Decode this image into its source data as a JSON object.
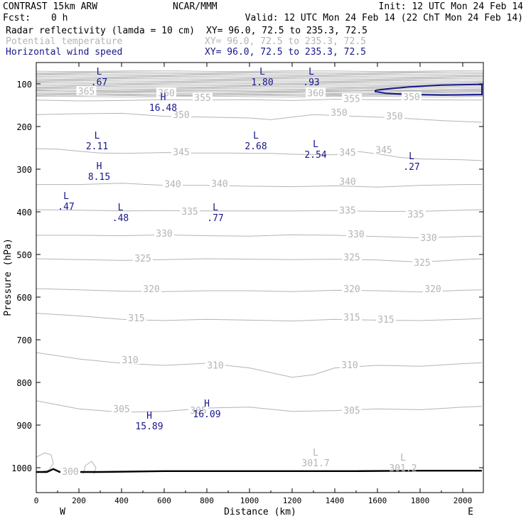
{
  "header": {
    "title": "CONTRAST 15km ARW",
    "center": "NCAR/MMM",
    "init": "Init: 12 UTC Mon 24 Feb 14",
    "fcst_label": "Fcst:",
    "fcst_value": "0 h",
    "valid": "Valid: 12 UTC Mon 24 Feb 14 (22 ChT Mon 24 Feb 14)"
  },
  "fields": [
    {
      "name": "Radar reflectivity (lamda = 10 cm)",
      "xy": "XY=  96.0, 72.5 to 235.3, 72.5",
      "color": "#000000"
    },
    {
      "name": "Potential temperature",
      "xy": "XY=  96.0, 72.5 to 235.3, 72.5",
      "color": "#b4b4b4"
    },
    {
      "name": "Horizontal wind speed",
      "xy": "XY=  96.0, 72.5 to 235.3, 72.5",
      "color": "#16168c"
    }
  ],
  "chart_data": {
    "type": "line",
    "title": "CONTRAST 15km ARW",
    "xlabel": "Distance (km)",
    "ylabel": "Pressure (hPa)",
    "xlim": [
      0,
      2090
    ],
    "ylim": [
      1050,
      70
    ],
    "x_ticks": [
      0,
      200,
      400,
      600,
      800,
      1000,
      1200,
      1400,
      1600,
      1800,
      2000
    ],
    "y_ticks": [
      100,
      200,
      300,
      400,
      500,
      600,
      700,
      800,
      900,
      1000
    ],
    "x_end_labels": {
      "left": "W",
      "right": "E"
    },
    "theta_contours": [
      {
        "value": "365",
        "points": [
          [
            0,
            115
          ],
          [
            150,
            117
          ],
          [
            300,
            116
          ],
          [
            450,
            118
          ],
          [
            600,
            117
          ],
          [
            800,
            116
          ],
          [
            1000,
            117
          ],
          [
            1200,
            119
          ],
          [
            1400,
            117
          ],
          [
            1600,
            115
          ],
          [
            1800,
            116
          ],
          [
            2090,
            117
          ]
        ]
      },
      {
        "value": "360",
        "points": [
          [
            0,
            125
          ],
          [
            200,
            127
          ],
          [
            400,
            126
          ],
          [
            600,
            125
          ],
          [
            800,
            127
          ],
          [
            1000,
            126
          ],
          [
            1200,
            125
          ],
          [
            1400,
            124
          ],
          [
            1600,
            126
          ],
          [
            2090,
            125
          ]
        ]
      },
      {
        "value": "355",
        "points": [
          [
            0,
            138
          ],
          [
            200,
            140
          ],
          [
            400,
            139
          ],
          [
            600,
            137
          ],
          [
            800,
            138
          ],
          [
            1000,
            137
          ],
          [
            1200,
            139
          ],
          [
            1400,
            136
          ],
          [
            1600,
            137
          ],
          [
            2090,
            138
          ]
        ]
      },
      {
        "value": "350",
        "points": [
          [
            0,
            172
          ],
          [
            200,
            170
          ],
          [
            400,
            169
          ],
          [
            600,
            176
          ],
          [
            800,
            178
          ],
          [
            1000,
            180
          ],
          [
            1100,
            184
          ],
          [
            1200,
            178
          ],
          [
            1300,
            172
          ],
          [
            1500,
            176
          ],
          [
            1700,
            180
          ],
          [
            1900,
            186
          ],
          [
            2090,
            190
          ]
        ]
      },
      {
        "value": "345",
        "points": [
          [
            0,
            252
          ],
          [
            100,
            253
          ],
          [
            200,
            258
          ],
          [
            300,
            262
          ],
          [
            400,
            263
          ],
          [
            500,
            262
          ],
          [
            600,
            261
          ],
          [
            700,
            262
          ],
          [
            800,
            262
          ],
          [
            900,
            262
          ],
          [
            1000,
            263
          ],
          [
            1100,
            263
          ],
          [
            1200,
            265
          ],
          [
            1300,
            266
          ],
          [
            1400,
            266
          ],
          [
            1500,
            258
          ],
          [
            1600,
            264
          ],
          [
            1700,
            272
          ],
          [
            1800,
            276
          ],
          [
            2000,
            278
          ],
          [
            2090,
            280
          ]
        ]
      },
      {
        "value": "340",
        "points": [
          [
            0,
            336
          ],
          [
            200,
            336
          ],
          [
            400,
            333
          ],
          [
            600,
            338
          ],
          [
            800,
            338
          ],
          [
            1000,
            340
          ],
          [
            1200,
            341
          ],
          [
            1400,
            339
          ],
          [
            1600,
            342
          ],
          [
            1800,
            338
          ],
          [
            2000,
            336
          ],
          [
            2090,
            336
          ]
        ]
      },
      {
        "value": "335",
        "points": [
          [
            0,
            395
          ],
          [
            200,
            396
          ],
          [
            400,
            398
          ],
          [
            600,
            397
          ],
          [
            800,
            398
          ],
          [
            1000,
            398
          ],
          [
            1200,
            398
          ],
          [
            1400,
            397
          ],
          [
            1600,
            399
          ],
          [
            1800,
            399
          ],
          [
            2000,
            396
          ],
          [
            2090,
            395
          ]
        ]
      },
      {
        "value": "330",
        "points": [
          [
            0,
            455
          ],
          [
            200,
            455
          ],
          [
            400,
            456
          ],
          [
            600,
            454
          ],
          [
            800,
            456
          ],
          [
            1000,
            457
          ],
          [
            1200,
            454
          ],
          [
            1400,
            455
          ],
          [
            1600,
            458
          ],
          [
            1800,
            461
          ],
          [
            2000,
            458
          ],
          [
            2090,
            457
          ]
        ]
      },
      {
        "value": "325",
        "points": [
          [
            0,
            510
          ],
          [
            200,
            512
          ],
          [
            400,
            514
          ],
          [
            600,
            512
          ],
          [
            800,
            510
          ],
          [
            1000,
            511
          ],
          [
            1200,
            512
          ],
          [
            1400,
            511
          ],
          [
            1600,
            513
          ],
          [
            1800,
            518
          ],
          [
            2000,
            512
          ],
          [
            2090,
            510
          ]
        ]
      },
      {
        "value": "320",
        "points": [
          [
            0,
            580
          ],
          [
            200,
            583
          ],
          [
            400,
            586
          ],
          [
            600,
            587
          ],
          [
            800,
            585
          ],
          [
            1000,
            585
          ],
          [
            1200,
            587
          ],
          [
            1400,
            584
          ],
          [
            1600,
            585
          ],
          [
            1800,
            588
          ],
          [
            2000,
            584
          ],
          [
            2090,
            583
          ]
        ]
      },
      {
        "value": "315",
        "points": [
          [
            0,
            638
          ],
          [
            200,
            644
          ],
          [
            400,
            652
          ],
          [
            600,
            655
          ],
          [
            800,
            652
          ],
          [
            1000,
            654
          ],
          [
            1200,
            656
          ],
          [
            1400,
            652
          ],
          [
            1600,
            654
          ],
          [
            1800,
            655
          ],
          [
            2000,
            652
          ],
          [
            2090,
            650
          ]
        ]
      },
      {
        "value": "310",
        "points": [
          [
            0,
            730
          ],
          [
            200,
            745
          ],
          [
            400,
            755
          ],
          [
            600,
            760
          ],
          [
            800,
            755
          ],
          [
            1000,
            766
          ],
          [
            1200,
            788
          ],
          [
            1300,
            782
          ],
          [
            1400,
            766
          ],
          [
            1600,
            760
          ],
          [
            1800,
            762
          ],
          [
            2000,
            756
          ],
          [
            2090,
            754
          ]
        ]
      },
      {
        "value": "305",
        "points": [
          [
            0,
            843
          ],
          [
            200,
            862
          ],
          [
            400,
            870
          ],
          [
            600,
            868
          ],
          [
            800,
            860
          ],
          [
            1000,
            858
          ],
          [
            1200,
            868
          ],
          [
            1400,
            866
          ],
          [
            1600,
            862
          ],
          [
            1800,
            864
          ],
          [
            2000,
            858
          ],
          [
            2090,
            856
          ]
        ]
      }
    ],
    "theta_labels": [
      {
        "text": "365",
        "x": 235,
        "p": 117
      },
      {
        "text": "360",
        "x": 610,
        "p": 121
      },
      {
        "text": "355",
        "x": 780,
        "p": 132
      },
      {
        "text": "360",
        "x": 1310,
        "p": 121
      },
      {
        "text": "355",
        "x": 1480,
        "p": 134
      },
      {
        "text": "350",
        "x": 1760,
        "p": 130
      },
      {
        "text": "350",
        "x": 680,
        "p": 172
      },
      {
        "text": "350",
        "x": 1420,
        "p": 167
      },
      {
        "text": "350",
        "x": 1680,
        "p": 175
      },
      {
        "text": "345",
        "x": 680,
        "p": 259
      },
      {
        "text": "345",
        "x": 1460,
        "p": 260
      },
      {
        "text": "345",
        "x": 1630,
        "p": 254
      },
      {
        "text": "340",
        "x": 640,
        "p": 334
      },
      {
        "text": "340",
        "x": 860,
        "p": 333
      },
      {
        "text": "340",
        "x": 1460,
        "p": 328
      },
      {
        "text": "335",
        "x": 720,
        "p": 398
      },
      {
        "text": "335",
        "x": 1460,
        "p": 396
      },
      {
        "text": "335",
        "x": 1780,
        "p": 405
      },
      {
        "text": "330",
        "x": 600,
        "p": 450
      },
      {
        "text": "330",
        "x": 1500,
        "p": 452
      },
      {
        "text": "330",
        "x": 1840,
        "p": 460
      },
      {
        "text": "325",
        "x": 500,
        "p": 508
      },
      {
        "text": "325",
        "x": 1480,
        "p": 506
      },
      {
        "text": "325",
        "x": 1810,
        "p": 518
      },
      {
        "text": "320",
        "x": 540,
        "p": 580
      },
      {
        "text": "320",
        "x": 1480,
        "p": 580
      },
      {
        "text": "320",
        "x": 1860,
        "p": 580
      },
      {
        "text": "315",
        "x": 470,
        "p": 648
      },
      {
        "text": "315",
        "x": 1480,
        "p": 647
      },
      {
        "text": "315",
        "x": 1640,
        "p": 652
      },
      {
        "text": "310",
        "x": 440,
        "p": 747
      },
      {
        "text": "310",
        "x": 840,
        "p": 759
      },
      {
        "text": "310",
        "x": 1470,
        "p": 758
      },
      {
        "text": "305",
        "x": 400,
        "p": 862
      },
      {
        "text": "305",
        "x": 760,
        "p": 865
      },
      {
        "text": "305",
        "x": 1480,
        "p": 865
      },
      {
        "text": "300",
        "x": 160,
        "p": 1008
      }
    ],
    "extrema": [
      {
        "type": "L",
        "value": ".67",
        "x": 295,
        "p": 70,
        "color": "#16168c"
      },
      {
        "type": "L",
        "value": "1.80",
        "x": 1060,
        "p": 70,
        "color": "#16168c"
      },
      {
        "type": "L",
        "value": ".93",
        "x": 1290,
        "p": 70,
        "color": "#16168c"
      },
      {
        "type": "H",
        "value": "16.48",
        "x": 595,
        "p": 130,
        "color": "#16168c"
      },
      {
        "type": "L",
        "value": "2.11",
        "x": 285,
        "p": 220,
        "color": "#16168c"
      },
      {
        "type": "L",
        "value": "2.68",
        "x": 1030,
        "p": 220,
        "color": "#16168c"
      },
      {
        "type": "L",
        "value": "2.54",
        "x": 1310,
        "p": 240,
        "color": "#16168c"
      },
      {
        "type": "L",
        "value": ".27",
        "x": 1760,
        "p": 268,
        "color": "#16168c"
      },
      {
        "type": "H",
        "value": "8.15",
        "x": 295,
        "p": 292,
        "color": "#16168c"
      },
      {
        "type": "L",
        "value": ".47",
        "x": 140,
        "p": 362,
        "color": "#16168c"
      },
      {
        "type": "L",
        "value": ".48",
        "x": 395,
        "p": 388,
        "color": "#16168c"
      },
      {
        "type": "L",
        "value": ".77",
        "x": 840,
        "p": 388,
        "color": "#16168c"
      },
      {
        "type": "H",
        "value": "16.09",
        "x": 800,
        "p": 848,
        "color": "#16168c"
      },
      {
        "type": "H",
        "value": "15.89",
        "x": 530,
        "p": 877,
        "color": "#16168c"
      },
      {
        "type": "L",
        "value": "301.7",
        "x": 1310,
        "p": 963,
        "color": "#b4b4b4"
      },
      {
        "type": "L",
        "value": "301.2",
        "x": 1720,
        "p": 975,
        "color": "#b4b4b4"
      }
    ],
    "wind_contour": {
      "color": "#16168c",
      "points": [
        [
          1590,
          115
        ],
        [
          1640,
          112
        ],
        [
          1750,
          107
        ],
        [
          1900,
          103
        ],
        [
          2090,
          101
        ],
        [
          2090,
          125
        ],
        [
          1900,
          126
        ],
        [
          1750,
          125
        ],
        [
          1640,
          122
        ],
        [
          1590,
          118
        ],
        [
          1590,
          115
        ]
      ]
    },
    "surface": {
      "color": "#000000",
      "points": [
        [
          0,
          1010
        ],
        [
          50,
          1010
        ],
        [
          80,
          1003
        ],
        [
          110,
          1010
        ],
        [
          300,
          1010
        ],
        [
          600,
          1008
        ],
        [
          900,
          1008
        ],
        [
          1200,
          1008
        ],
        [
          1500,
          1008
        ],
        [
          1800,
          1007
        ],
        [
          2090,
          1007
        ]
      ]
    },
    "radar_contours": [
      {
        "color": "#b4b4b4",
        "points": [
          [
            0,
            975
          ],
          [
            40,
            965
          ],
          [
            70,
            970
          ],
          [
            80,
            990
          ],
          [
            60,
            1005
          ],
          [
            20,
            1010
          ]
        ]
      },
      {
        "color": "#b4b4b4",
        "points": [
          [
            220,
            1015
          ],
          [
            230,
            995
          ],
          [
            260,
            985
          ],
          [
            280,
            1000
          ],
          [
            270,
            1015
          ]
        ]
      }
    ]
  }
}
